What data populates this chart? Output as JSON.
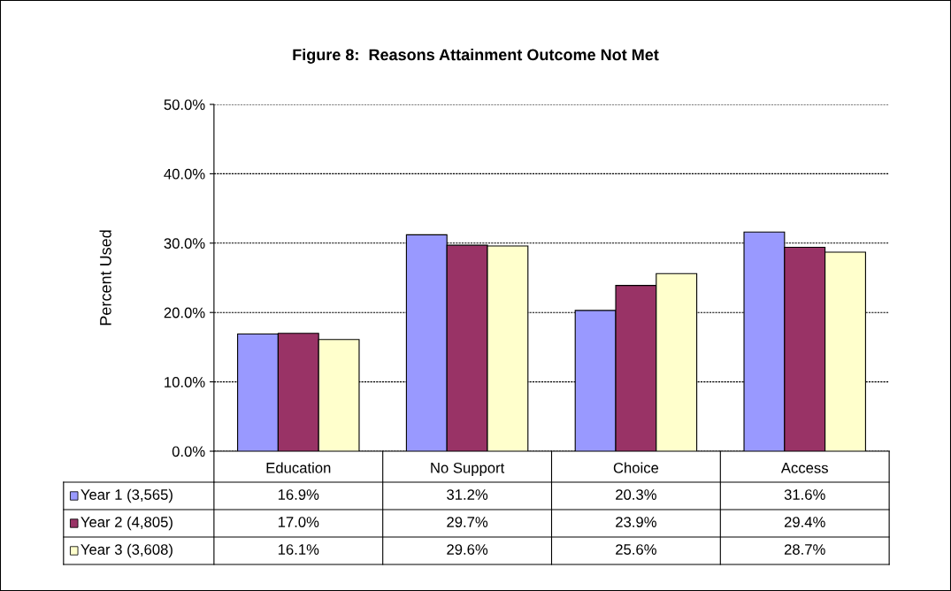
{
  "chart_data": {
    "type": "bar",
    "title": "Figure 8:  Reasons Attainment Outcome Not Met",
    "ylabel": "Percent Used",
    "categories": [
      "Education",
      "No Support",
      "Choice",
      "Access"
    ],
    "series": [
      {
        "name": "Year 1 (3,565)",
        "color": "#9999ff",
        "values": [
          16.9,
          31.2,
          20.3,
          31.6
        ],
        "value_labels": [
          "16.9%",
          "31.2%",
          "20.3%",
          "31.6%"
        ]
      },
      {
        "name": "Year 2 (4,805)",
        "color": "#993366",
        "values": [
          17.0,
          29.7,
          23.9,
          29.4
        ],
        "value_labels": [
          "17.0%",
          "29.7%",
          "23.9%",
          "29.4%"
        ]
      },
      {
        "name": "Year 3 (3,608)",
        "color": "#ffffcc",
        "values": [
          16.1,
          29.6,
          25.6,
          28.7
        ],
        "value_labels": [
          "16.1%",
          "29.6%",
          "25.6%",
          "28.7%"
        ]
      }
    ],
    "ylim": [
      0,
      50
    ],
    "yticks": [
      {
        "value": 0,
        "label": "0.0%"
      },
      {
        "value": 10,
        "label": "10.0%"
      },
      {
        "value": 20,
        "label": "20.0%"
      },
      {
        "value": 30,
        "label": "30.0%"
      },
      {
        "value": 40,
        "label": "40.0%"
      },
      {
        "value": 50,
        "label": "50.0%"
      }
    ],
    "grid": "y",
    "legend": "bottom"
  }
}
